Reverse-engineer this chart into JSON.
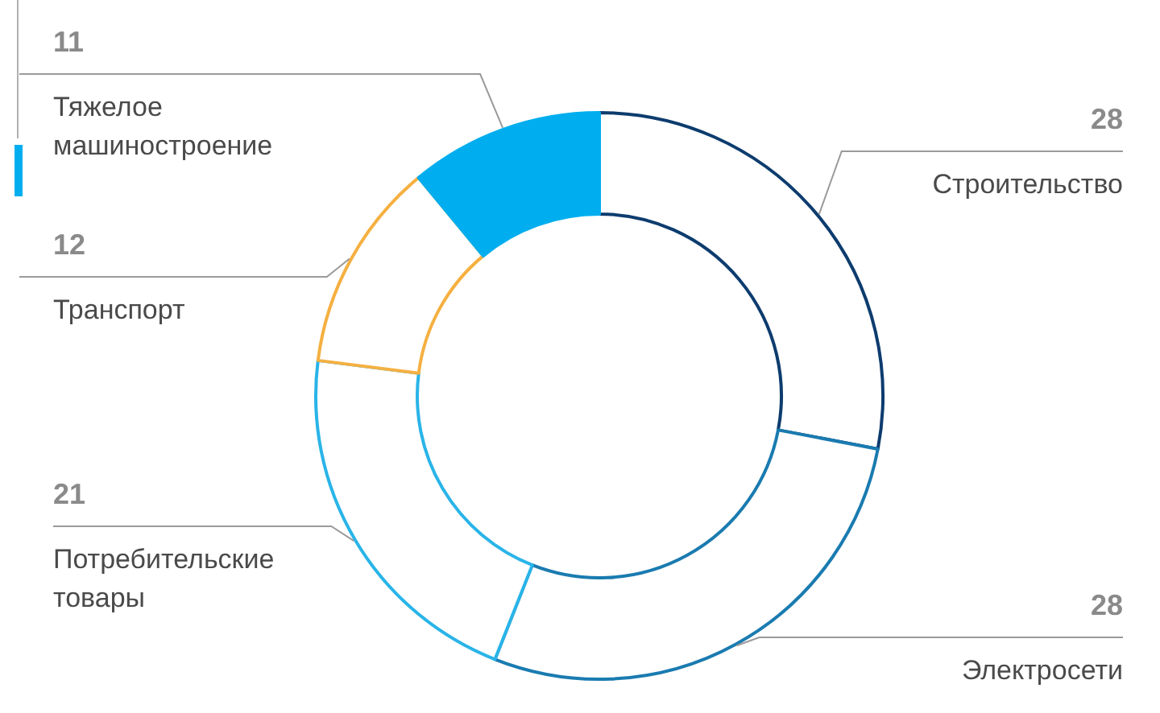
{
  "chart_data": {
    "type": "donut",
    "categories": [
      "Строительство",
      "Электросети",
      "Потребительские товары",
      "Транспорт",
      "Тяжелое машиностроение"
    ],
    "values": [
      28,
      28,
      21,
      12,
      11
    ],
    "colors": [
      "#0d3c6e",
      "#1a7bb0",
      "#29b4e8",
      "#f5b041",
      "#00aeef"
    ],
    "data_labels": true
  }
}
